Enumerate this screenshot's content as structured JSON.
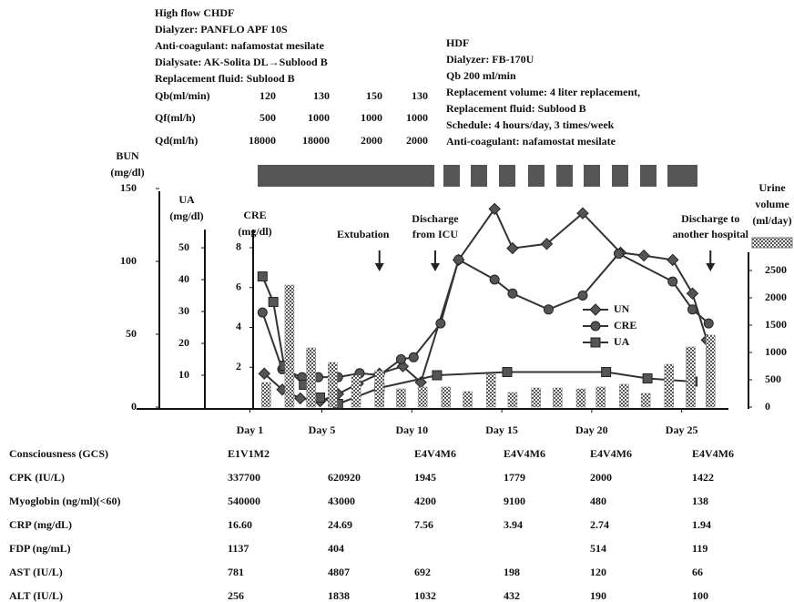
{
  "chdf": {
    "lines": [
      "High flow CHDF",
      "Dialyzer: PANFLO APF 10S",
      "Anti-coagulant: nafamostat mesilate",
      "Dialysate: AK-Solita DL→Sublood B",
      "Replacement fluid: Sublood B"
    ],
    "rows": [
      {
        "label": "Qb(ml/min)",
        "values": [
          120,
          130,
          150,
          130
        ]
      },
      {
        "label": "Qf(ml/h)",
        "values": [
          500,
          1000,
          1000,
          1000
        ]
      },
      {
        "label": "Qd(ml/h)",
        "values": [
          18000,
          18000,
          2000,
          2000
        ]
      }
    ]
  },
  "hdf": {
    "lines": [
      "HDF",
      "Dialyzer: FB-170U",
      "Qb 200 ml/min",
      "Replacement volume: 4 liter replacement,",
      "Replacement fluid: Sublood B",
      "Schedule: 4 hours/day, 3 times/week",
      "Anti-coagulant: nafamostat mesilate"
    ]
  },
  "chart_data": {
    "type": "line",
    "xlim": [
      -5.3,
      27.6
    ],
    "xticks": [
      {
        "value": 1,
        "label": "Day 1"
      },
      {
        "value": 5,
        "label": "Day 5"
      },
      {
        "value": 10,
        "label": "Day 10"
      },
      {
        "value": 15,
        "label": "Day 15"
      },
      {
        "value": 20,
        "label": "Day 20"
      },
      {
        "value": 25,
        "label": "Day 25"
      }
    ],
    "axes": {
      "bun": {
        "label": [
          "BUN",
          "(mg/dl)"
        ],
        "ylim": [
          0,
          150
        ],
        "yticks": [
          0,
          50,
          100,
          150
        ]
      },
      "ua": {
        "label": [
          "UA",
          "(mg/dl)"
        ],
        "ylim": [
          0,
          68.6
        ],
        "yticks": [
          10,
          20,
          30,
          40,
          50
        ]
      },
      "cre": {
        "label": [
          "CRE",
          "(mg/dl)"
        ],
        "ylim": [
          0,
          10.97
        ],
        "yticks": [
          2,
          4,
          6,
          8
        ]
      },
      "urine": {
        "label": [
          "Urine",
          "volume",
          "(ml/day)"
        ],
        "ylim": [
          0,
          4000
        ],
        "yticks": [
          0,
          500,
          1000,
          1500,
          2000,
          2500
        ]
      }
    },
    "series": [
      {
        "name": "UN",
        "axis": "bun",
        "marker": "diamond",
        "color": "#333333",
        "x": [
          1.8,
          2.8,
          3.8,
          4.9,
          5.9,
          7.0,
          8.2,
          9.5,
          10.5,
          12.6,
          14.6,
          15.6,
          17.5,
          19.5,
          21.6,
          22.9,
          24.5,
          25.6,
          26.4
        ],
        "values": [
          23,
          12,
          6,
          4,
          9,
          16,
          23,
          28,
          17,
          101,
          136,
          109,
          112,
          133,
          106,
          104,
          101,
          78,
          46
        ]
      },
      {
        "name": "CRE",
        "axis": "cre",
        "marker": "circle",
        "color": "#333333",
        "x": [
          1.7,
          2.8,
          3.9,
          4.8,
          5.9,
          7.1,
          8.2,
          9.4,
          10.1,
          11.6,
          12.6,
          14.6,
          15.6,
          17.6,
          19.5,
          21.5,
          24.5,
          25.6,
          26.5
        ],
        "values": [
          4.75,
          1.9,
          1.5,
          1.5,
          1.5,
          1.7,
          1.6,
          2.4,
          2.5,
          4.2,
          7.4,
          6.4,
          5.7,
          4.9,
          5.6,
          7.7,
          6.3,
          4.9,
          4.2
        ]
      },
      {
        "name": "UA",
        "axis": "ua",
        "marker": "square",
        "color": "#333333",
        "x": [
          1.7,
          2.3,
          2.9,
          4.0,
          4.9,
          5.9,
          8.2,
          11.4,
          15.3,
          20.8,
          23.1,
          25.6
        ],
        "values": [
          41,
          33,
          13,
          7,
          3,
          1,
          6,
          10,
          11,
          11,
          9,
          8
        ]
      },
      {
        "axis": "urine",
        "marker": "bar",
        "color": "#777777",
        "x": [
          1.9,
          3.2,
          4.4,
          5.6,
          6.9,
          8.2,
          9.4,
          10.6,
          11.9,
          13.1,
          14.4,
          15.6,
          16.9,
          18.1,
          19.4,
          20.5,
          21.8,
          23.0,
          24.3,
          25.5,
          26.6
        ],
        "values": [
          450,
          2233,
          1083,
          817,
          583,
          667,
          333,
          367,
          367,
          283,
          600,
          267,
          350,
          350,
          333,
          367,
          417,
          250,
          783,
          1100,
          1317
        ]
      }
    ],
    "annotations": [
      {
        "text": [
          "Extubation"
        ],
        "x": 8.2
      },
      {
        "text": [
          "Discharge",
          "from ICU"
        ],
        "x": 11.3
      },
      {
        "text": [
          "Discharge to",
          "another hospital"
        ],
        "x": 26.6
      }
    ]
  },
  "table": {
    "rows": [
      {
        "label": "Consciousness (GCS)",
        "cells": [
          "E1V1M2",
          null,
          "E4V4M6",
          "E4V4M6",
          "E4V4M6",
          "E4V4M6"
        ]
      },
      {
        "label": "CPK (IU/L)",
        "cells": [
          "337700",
          "620920",
          "1945",
          "1779",
          "2000",
          "1422"
        ]
      },
      {
        "label": "Myoglobin (ng/ml)(<60)",
        "cells": [
          "540000",
          "43000",
          "4200",
          "9100",
          "480",
          "138"
        ]
      },
      {
        "label": "CRP (mg/dL)",
        "cells": [
          "16.60",
          "24.69",
          "7.56",
          "3.94",
          "2.74",
          "1.94"
        ]
      },
      {
        "label": "FDP (ng/mL)",
        "cells": [
          "1137",
          "404",
          null,
          null,
          "514",
          "119"
        ]
      },
      {
        "label": "AST (IU/L)",
        "cells": [
          "781",
          "4807",
          "692",
          "198",
          "120",
          "66"
        ]
      },
      {
        "label": "ALT (IU/L)",
        "cells": [
          "256",
          "1838",
          "1032",
          "432",
          "190",
          "100"
        ]
      }
    ]
  }
}
